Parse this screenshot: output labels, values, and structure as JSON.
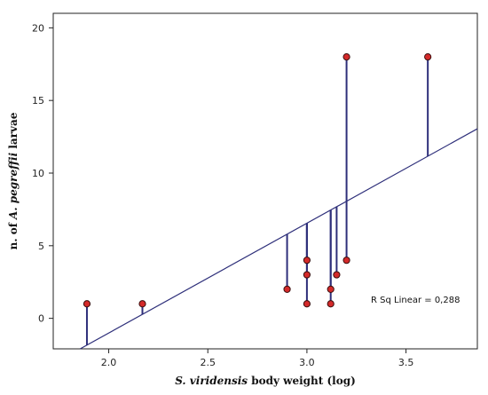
{
  "chart_data": {
    "type": "scatter",
    "title": "",
    "xlabel_parts": [
      {
        "text": "S. viridensis",
        "italic": true
      },
      {
        "text": " body weight (log)",
        "italic": false
      }
    ],
    "ylabel_parts": [
      {
        "text": "n. of ",
        "italic": false
      },
      {
        "text": "A. pegreffii",
        "italic": true
      },
      {
        "text": " larvae",
        "italic": false
      }
    ],
    "xlim": [
      1.72,
      3.86
    ],
    "ylim": [
      -2.1,
      21.0
    ],
    "xticks": [
      2.0,
      2.5,
      3.0,
      3.5
    ],
    "xtick_labels": [
      "2.0",
      "2.5",
      "3.0",
      "3.5"
    ],
    "yticks": [
      0,
      5,
      10,
      15,
      20
    ],
    "ytick_labels": [
      "0",
      "5",
      "10",
      "15",
      "20"
    ],
    "points": [
      {
        "x": 1.89,
        "y": 1
      },
      {
        "x": 2.17,
        "y": 1
      },
      {
        "x": 2.9,
        "y": 2
      },
      {
        "x": 3.0,
        "y": 1
      },
      {
        "x": 3.0,
        "y": 3
      },
      {
        "x": 3.0,
        "y": 4
      },
      {
        "x": 3.12,
        "y": 1
      },
      {
        "x": 3.12,
        "y": 2
      },
      {
        "x": 3.15,
        "y": 3
      },
      {
        "x": 3.2,
        "y": 4
      },
      {
        "x": 3.2,
        "y": 18
      },
      {
        "x": 3.61,
        "y": 18
      }
    ],
    "fit_line": {
      "slope": 7.56,
      "intercept": -16.13
    },
    "annotation": "R Sq Linear = 0,288",
    "colors": {
      "point_fill": "#d42a2a",
      "point_stroke": "#3a0d0d",
      "line": "#2e2f7a",
      "frame": "#222222"
    },
    "grid": false
  }
}
